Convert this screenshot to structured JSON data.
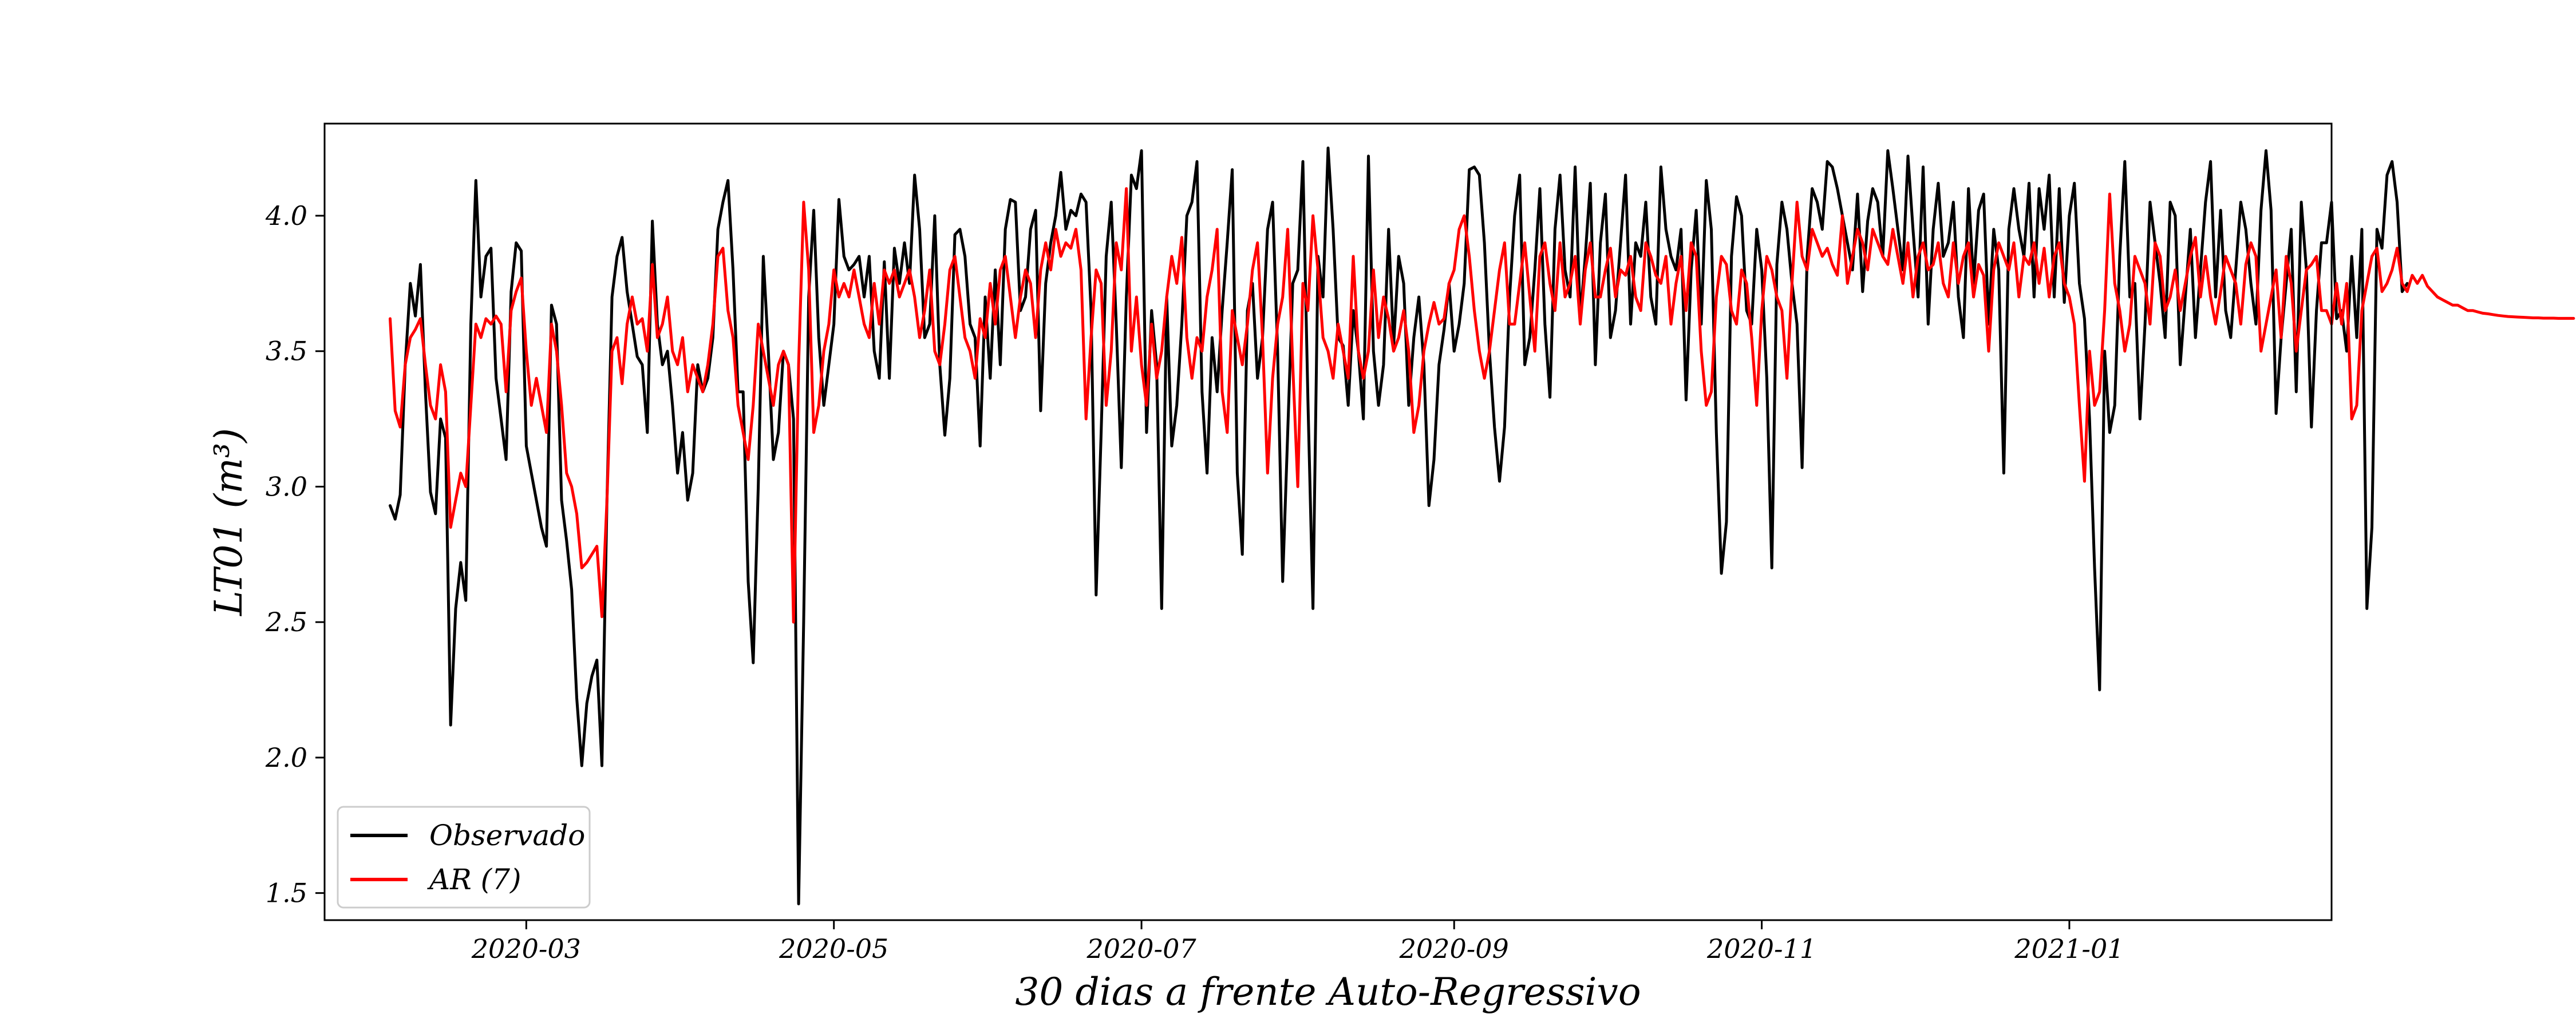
{
  "chart_data": {
    "type": "line",
    "title": "",
    "xlabel": "30 dias a frente Auto-Regressivo",
    "ylabel": "LT01 (m³)",
    "ylim": [
      1.4,
      4.34
    ],
    "xlim": [
      "2020-01-21",
      "2021-02-22"
    ],
    "x_tick_labels": [
      "2020-03",
      "2020-05",
      "2020-07",
      "2020-09",
      "2020-11",
      "2021-01"
    ],
    "y_tick_labels": [
      "1.5",
      "2.0",
      "2.5",
      "3.0",
      "3.5",
      "4.0"
    ],
    "y_ticks": [
      1.5,
      2.0,
      2.5,
      3.0,
      3.5,
      4.0
    ],
    "grid": false,
    "legend_position": "lower-left",
    "series": [
      {
        "name": "Observado",
        "color": "#000000",
        "x_start": "2020-02-03",
        "values": [
          2.93,
          2.88,
          2.97,
          3.45,
          3.75,
          3.63,
          3.82,
          3.35,
          2.98,
          2.9,
          3.25,
          3.18,
          2.12,
          2.55,
          2.72,
          2.58,
          3.6,
          4.13,
          3.7,
          3.85,
          3.88,
          3.4,
          3.25,
          3.1,
          3.72,
          3.9,
          3.87,
          3.15,
          3.05,
          2.95,
          2.85,
          2.78,
          3.67,
          3.6,
          2.95,
          2.8,
          2.62,
          2.22,
          1.97,
          2.2,
          2.3,
          2.36,
          1.97,
          2.95,
          3.7,
          3.85,
          3.92,
          3.72,
          3.6,
          3.48,
          3.45,
          3.2,
          3.98,
          3.6,
          3.45,
          3.5,
          3.3,
          3.05,
          3.2,
          2.95,
          3.05,
          3.45,
          3.35,
          3.4,
          3.55,
          3.95,
          4.05,
          4.13,
          3.8,
          3.35,
          3.35,
          2.65,
          2.35,
          3.0,
          3.85,
          3.5,
          3.1,
          3.2,
          3.5,
          3.45,
          3.25,
          1.46,
          2.5,
          3.7,
          4.02,
          3.55,
          3.3,
          3.45,
          3.6,
          4.06,
          3.85,
          3.8,
          3.82,
          3.85,
          3.7,
          3.85,
          3.5,
          3.4,
          3.83,
          3.4,
          3.88,
          3.75,
          3.9,
          3.75,
          4.15,
          3.95,
          3.55,
          3.6,
          4.0,
          3.45,
          3.19,
          3.4,
          3.93,
          3.95,
          3.85,
          3.6,
          3.55,
          3.15,
          3.7,
          3.4,
          3.8,
          3.45,
          3.95,
          4.06,
          4.05,
          3.65,
          3.7,
          3.95,
          4.02,
          3.28,
          3.75,
          3.9,
          4.0,
          4.16,
          3.95,
          4.02,
          4.0,
          4.08,
          4.05,
          3.65,
          2.6,
          3.2,
          3.85,
          4.05,
          3.6,
          3.07,
          3.7,
          4.15,
          4.1,
          4.24,
          3.2,
          3.65,
          3.45,
          2.55,
          3.7,
          3.15,
          3.3,
          3.6,
          4.0,
          4.05,
          4.2,
          3.35,
          3.05,
          3.55,
          3.35,
          3.65,
          3.9,
          4.17,
          3.05,
          2.75,
          3.65,
          3.75,
          3.4,
          3.55,
          3.95,
          4.05,
          3.5,
          2.65,
          3.2,
          3.75,
          3.8,
          4.2,
          3.32,
          2.55,
          3.85,
          3.7,
          4.25,
          3.95,
          3.55,
          3.52,
          3.3,
          3.65,
          3.5,
          3.25,
          4.22,
          3.5,
          3.3,
          3.45,
          3.95,
          3.52,
          3.85,
          3.75,
          3.3,
          3.55,
          3.7,
          3.45,
          2.93,
          3.1,
          3.45,
          3.58,
          3.75,
          3.5,
          3.6,
          3.75,
          4.17,
          4.18,
          4.15,
          3.9,
          3.5,
          3.22,
          3.02,
          3.22,
          3.7,
          4.0,
          4.15,
          3.45,
          3.55,
          3.8,
          4.1,
          3.6,
          3.33,
          3.95,
          4.15,
          3.8,
          3.7,
          4.18,
          3.62,
          3.85,
          4.12,
          3.45,
          3.9,
          4.08,
          3.55,
          3.65,
          3.9,
          4.15,
          3.6,
          3.9,
          3.85,
          4.05,
          3.7,
          3.6,
          4.18,
          3.95,
          3.85,
          3.8,
          3.95,
          3.32,
          3.8,
          4.02,
          3.6,
          4.13,
          3.95,
          3.2,
          2.68,
          2.87,
          3.85,
          4.07,
          4.0,
          3.65,
          3.6,
          3.95,
          3.8,
          3.4,
          2.7,
          3.82,
          4.05,
          3.95,
          3.75,
          3.6,
          3.07,
          3.85,
          4.1,
          4.05,
          3.95,
          4.2,
          4.18,
          4.1,
          4.0,
          3.9,
          3.8,
          4.08,
          3.72,
          3.98,
          4.1,
          4.05,
          3.85,
          4.24,
          4.1,
          3.95,
          3.8,
          4.22,
          3.95,
          3.7,
          4.18,
          3.6,
          3.95,
          4.12,
          3.85,
          3.9,
          4.05,
          3.7,
          3.55,
          4.1,
          3.75,
          4.02,
          4.08,
          3.6,
          3.95,
          3.8,
          3.05,
          3.95,
          4.1,
          3.95,
          3.85,
          4.12,
          3.7,
          4.1,
          3.95,
          4.15,
          3.7,
          4.1,
          3.68,
          4.0,
          4.12,
          3.75,
          3.62,
          3.25,
          2.7,
          2.25,
          3.5,
          3.2,
          3.3,
          3.85,
          4.2,
          3.7,
          3.75,
          3.25,
          3.6,
          4.05,
          3.9,
          3.75,
          3.55,
          4.05,
          4.0,
          3.45,
          3.7,
          3.95,
          3.55,
          3.8,
          4.05,
          4.2,
          3.7,
          4.02,
          3.65,
          3.55,
          3.8,
          4.05,
          3.95,
          3.75,
          3.6,
          4.02,
          4.24,
          4.02,
          3.27,
          3.55,
          3.75,
          3.95,
          3.35,
          4.05,
          3.8,
          3.22,
          3.65,
          3.9,
          3.9,
          4.05,
          3.62,
          3.65,
          3.5,
          3.85,
          3.55,
          3.95,
          2.55,
          2.85,
          3.95,
          3.88,
          4.15,
          4.2,
          4.05,
          3.72,
          3.75
        ]
      },
      {
        "name": "AR (7)",
        "color": "#ff0000",
        "x_start": "2020-02-03",
        "values": [
          3.62,
          3.28,
          3.22,
          3.45,
          3.55,
          3.58,
          3.62,
          3.45,
          3.3,
          3.25,
          3.45,
          3.35,
          2.85,
          2.95,
          3.05,
          3.0,
          3.3,
          3.6,
          3.55,
          3.62,
          3.6,
          3.63,
          3.6,
          3.35,
          3.65,
          3.72,
          3.77,
          3.5,
          3.3,
          3.4,
          3.3,
          3.2,
          3.6,
          3.5,
          3.3,
          3.05,
          3.0,
          2.9,
          2.7,
          2.72,
          2.75,
          2.78,
          2.52,
          2.95,
          3.5,
          3.55,
          3.38,
          3.6,
          3.7,
          3.6,
          3.62,
          3.5,
          3.82,
          3.55,
          3.6,
          3.7,
          3.5,
          3.45,
          3.55,
          3.35,
          3.45,
          3.4,
          3.35,
          3.45,
          3.6,
          3.85,
          3.88,
          3.65,
          3.55,
          3.3,
          3.2,
          3.1,
          3.3,
          3.6,
          3.5,
          3.4,
          3.3,
          3.45,
          3.5,
          3.45,
          2.5,
          3.45,
          4.05,
          3.8,
          3.2,
          3.3,
          3.5,
          3.6,
          3.8,
          3.7,
          3.75,
          3.7,
          3.8,
          3.7,
          3.6,
          3.55,
          3.75,
          3.6,
          3.8,
          3.75,
          3.8,
          3.7,
          3.75,
          3.8,
          3.7,
          3.55,
          3.65,
          3.8,
          3.5,
          3.45,
          3.6,
          3.8,
          3.85,
          3.7,
          3.55,
          3.5,
          3.4,
          3.62,
          3.55,
          3.75,
          3.6,
          3.8,
          3.85,
          3.7,
          3.55,
          3.7,
          3.8,
          3.75,
          3.55,
          3.8,
          3.9,
          3.8,
          3.95,
          3.85,
          3.9,
          3.88,
          3.95,
          3.8,
          3.25,
          3.55,
          3.8,
          3.75,
          3.3,
          3.5,
          3.9,
          3.8,
          4.1,
          3.5,
          3.7,
          3.45,
          3.3,
          3.6,
          3.4,
          3.5,
          3.7,
          3.85,
          3.75,
          3.92,
          3.55,
          3.4,
          3.55,
          3.5,
          3.7,
          3.8,
          3.95,
          3.35,
          3.2,
          3.65,
          3.55,
          3.45,
          3.6,
          3.8,
          3.9,
          3.55,
          3.05,
          3.4,
          3.6,
          3.7,
          3.95,
          3.45,
          3.0,
          3.75,
          3.65,
          4.0,
          3.8,
          3.55,
          3.5,
          3.4,
          3.6,
          3.5,
          3.4,
          3.85,
          3.5,
          3.4,
          3.5,
          3.8,
          3.55,
          3.7,
          3.62,
          3.5,
          3.55,
          3.65,
          3.5,
          3.2,
          3.3,
          3.5,
          3.6,
          3.68,
          3.6,
          3.62,
          3.75,
          3.8,
          3.95,
          4.0,
          3.85,
          3.65,
          3.5,
          3.4,
          3.5,
          3.65,
          3.8,
          3.9,
          3.6,
          3.6,
          3.75,
          3.9,
          3.7,
          3.5,
          3.85,
          3.9,
          3.75,
          3.65,
          3.9,
          3.7,
          3.75,
          3.85,
          3.6,
          3.8,
          3.9,
          3.7,
          3.7,
          3.8,
          3.88,
          3.7,
          3.8,
          3.78,
          3.85,
          3.7,
          3.65,
          3.9,
          3.85,
          3.78,
          3.75,
          3.85,
          3.6,
          3.75,
          3.85,
          3.65,
          3.9,
          3.85,
          3.5,
          3.3,
          3.35,
          3.7,
          3.85,
          3.82,
          3.65,
          3.6,
          3.8,
          3.75,
          3.55,
          3.3,
          3.65,
          3.85,
          3.8,
          3.7,
          3.65,
          3.4,
          3.75,
          4.05,
          3.85,
          3.8,
          3.95,
          3.9,
          3.85,
          3.88,
          3.82,
          3.78,
          4.0,
          3.75,
          3.85,
          3.95,
          3.9,
          3.8,
          3.95,
          3.9,
          3.85,
          3.82,
          3.95,
          3.85,
          3.75,
          3.9,
          3.7,
          3.85,
          3.9,
          3.8,
          3.82,
          3.9,
          3.75,
          3.7,
          3.9,
          3.75,
          3.85,
          3.9,
          3.7,
          3.82,
          3.78,
          3.5,
          3.8,
          3.9,
          3.85,
          3.8,
          3.9,
          3.7,
          3.85,
          3.82,
          3.9,
          3.75,
          3.88,
          3.7,
          3.85,
          3.9,
          3.75,
          3.7,
          3.6,
          3.3,
          3.02,
          3.5,
          3.3,
          3.35,
          3.65,
          4.08,
          3.75,
          3.65,
          3.5,
          3.6,
          3.85,
          3.8,
          3.75,
          3.6,
          3.9,
          3.85,
          3.65,
          3.7,
          3.8,
          3.65,
          3.75,
          3.85,
          3.92,
          3.7,
          3.85,
          3.7,
          3.6,
          3.72,
          3.85,
          3.8,
          3.75,
          3.6,
          3.82,
          3.9,
          3.85,
          3.5,
          3.6,
          3.7,
          3.8,
          3.55,
          3.85,
          3.75,
          3.5,
          3.65,
          3.8,
          3.82,
          3.85,
          3.65,
          3.65,
          3.6,
          3.75,
          3.6,
          3.75,
          3.25,
          3.3,
          3.65,
          3.75,
          3.85,
          3.88,
          3.72,
          3.75,
          3.8,
          3.88,
          3.75,
          3.72,
          3.78,
          3.75,
          3.78,
          3.74,
          3.72,
          3.7,
          3.69,
          3.68,
          3.67,
          3.67,
          3.66,
          3.65,
          3.65,
          3.645,
          3.64,
          3.638,
          3.635,
          3.632,
          3.63,
          3.628,
          3.627,
          3.626,
          3.625,
          3.624,
          3.623,
          3.623,
          3.622,
          3.622,
          3.622,
          3.621,
          3.621,
          3.621,
          3.621
        ]
      }
    ]
  }
}
